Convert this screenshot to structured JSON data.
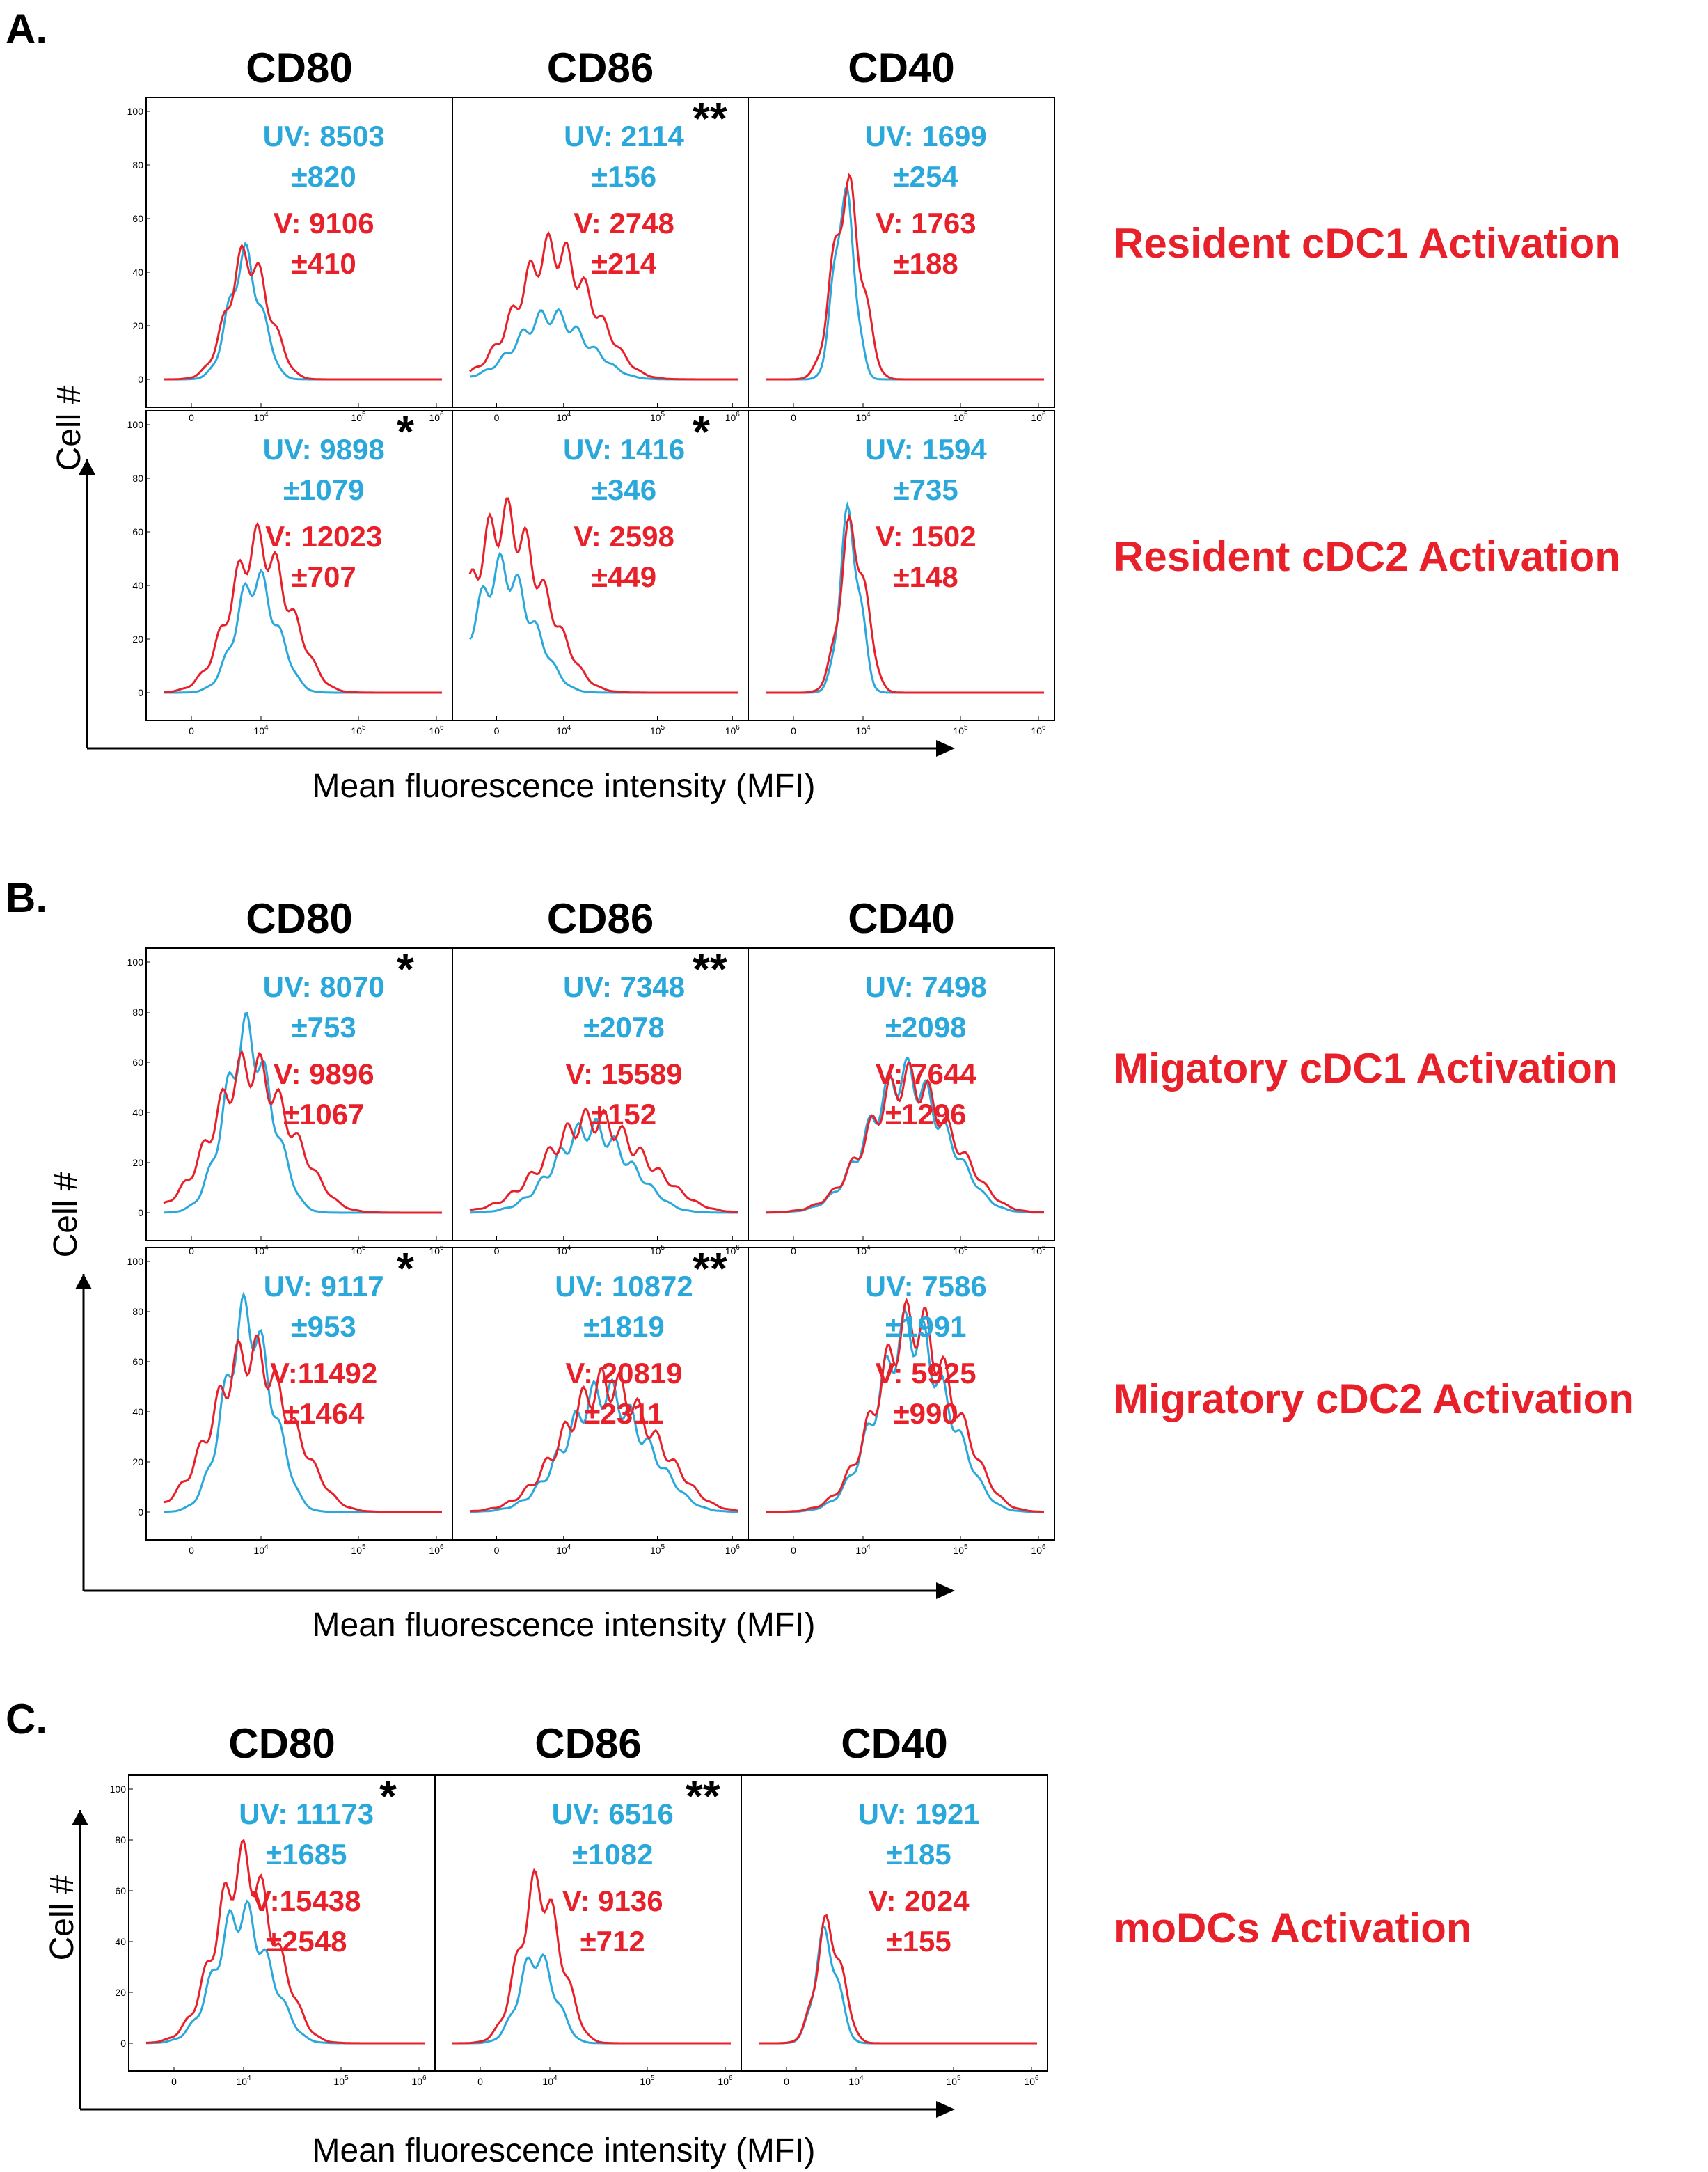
{
  "colors": {
    "uv": "#2aa8dc",
    "v": "#e8202a",
    "label": "#e8202a",
    "text": "#000000"
  },
  "axis": {
    "y_label": "Cell #",
    "x_label": "Mean fluorescence intensity (MFI)",
    "y_ticks": [
      "0",
      "20",
      "40",
      "60",
      "80",
      "100"
    ],
    "x_ticks": [
      {
        "base": "0",
        "exp": ""
      },
      {
        "base": "10",
        "exp": "4"
      },
      {
        "base": "10",
        "exp": "5"
      },
      {
        "base": "10",
        "exp": "6"
      }
    ]
  },
  "chart_data": [
    {
      "type": "line",
      "panel": "A.",
      "markers": [
        "CD80",
        "CD86",
        "CD40"
      ],
      "rows": [
        {
          "label": "Resident cDC1 Activation",
          "cells": [
            {
              "marker": "CD80",
              "uv": "UV: 8503",
              "uv_sd": "±820",
              "v": "V: 9106",
              "v_sd": "±410",
              "sig": "",
              "peak_x": 0.29,
              "uv_peak": 51,
              "v_peak": 52,
              "uv_width": 0.055,
              "v_width": 0.07
            },
            {
              "marker": "CD86",
              "uv": "UV: 2114",
              "uv_sd": "±156",
              "v": "V: 2748",
              "v_sd": "±214",
              "sig": "**",
              "peak_x": 0.3,
              "uv_peak": 27,
              "v_peak": 55,
              "uv_width": 0.12,
              "v_width": 0.13
            },
            {
              "marker": "CD40",
              "uv": "UV: 1699",
              "uv_sd": "±254",
              "v": "V: 1763",
              "v_sd": "±188",
              "sig": "",
              "peak_x": 0.28,
              "uv_peak": 78,
              "v_peak": 79,
              "uv_width": 0.035,
              "v_width": 0.05
            }
          ]
        },
        {
          "label": "Resident cDC2 Activation",
          "cells": [
            {
              "marker": "CD80",
              "uv": "UV: 9898",
              "uv_sd": "±1079",
              "v": "V: 12023",
              "v_sd": "±707",
              "sig": "*",
              "peak_x": 0.33,
              "uv_peak": 48,
              "v_peak": 63,
              "uv_width": 0.07,
              "v_width": 0.1
            },
            {
              "marker": "CD86",
              "uv": "UV: 1416",
              "uv_sd": "±346",
              "v": "V: 2598",
              "v_sd": "±449",
              "sig": "*",
              "peak_x": 0.12,
              "uv_peak": 52,
              "v_peak": 73,
              "uv_width": 0.1,
              "v_width": 0.13
            },
            {
              "marker": "CD40",
              "uv": "UV: 1594",
              "uv_sd": "±735",
              "v": "V: 1502",
              "v_sd": "±148",
              "sig": "",
              "peak_x": 0.3,
              "uv_peak": 72,
              "v_peak": 68,
              "uv_width": 0.035,
              "v_width": 0.045
            }
          ]
        }
      ]
    },
    {
      "type": "line",
      "panel": "B.",
      "markers": [
        "CD80",
        "CD86",
        "CD40"
      ],
      "rows": [
        {
          "label": "Migatory cDC1 Activation",
          "cells": [
            {
              "marker": "CD80",
              "uv": "UV: 8070",
              "uv_sd": "±753",
              "v": "V: 9896",
              "v_sd": "±1067",
              "sig": "*",
              "peak_x": 0.3,
              "uv_peak": 80,
              "v_peak": 66,
              "uv_width": 0.08,
              "v_width": 0.13
            },
            {
              "marker": "CD86",
              "uv": "UV: 7348",
              "uv_sd": "±2078",
              "v": "V: 15589",
              "v_sd": "±152",
              "sig": "**",
              "peak_x": 0.45,
              "uv_peak": 38,
              "v_peak": 42,
              "uv_width": 0.13,
              "v_width": 0.17
            },
            {
              "marker": "CD40",
              "uv": "UV: 7498",
              "uv_sd": "±2098",
              "v": "V: 7644",
              "v_sd": "±1296",
              "sig": "",
              "peak_x": 0.5,
              "uv_peak": 62,
              "v_peak": 60,
              "uv_width": 0.13,
              "v_width": 0.14
            }
          ]
        },
        {
          "label": "Migratory cDC2 Activation",
          "cells": [
            {
              "marker": "CD80",
              "uv": "UV: 9117",
              "uv_sd": "±953",
              "v": "V:11492",
              "v_sd": "±1464",
              "sig": "*",
              "peak_x": 0.3,
              "uv_peak": 88,
              "v_peak": 72,
              "uv_width": 0.08,
              "v_width": 0.13
            },
            {
              "marker": "CD86",
              "uv": "UV: 10872",
              "uv_sd": "±1819",
              "v": "V: 20819",
              "v_sd": "±2311",
              "sig": "**",
              "peak_x": 0.5,
              "uv_peak": 54,
              "v_peak": 58,
              "uv_width": 0.14,
              "v_width": 0.16
            },
            {
              "marker": "CD40",
              "uv": "UV: 7586",
              "uv_sd": "±1991",
              "v": "V: 5925",
              "v_sd": "±990",
              "sig": "",
              "peak_x": 0.52,
              "uv_peak": 82,
              "v_peak": 86,
              "uv_width": 0.12,
              "v_width": 0.13
            }
          ]
        }
      ]
    },
    {
      "type": "line",
      "panel": "C.",
      "markers": [
        "CD80",
        "CD86",
        "CD40"
      ],
      "rows": [
        {
          "label": "moDCs Activation",
          "cells": [
            {
              "marker": "CD80",
              "uv": "UV: 11173",
              "uv_sd": "±1685",
              "v": "V:15438",
              "v_sd": "±2548",
              "sig": "*",
              "peak_x": 0.34,
              "uv_peak": 58,
              "v_peak": 80,
              "uv_width": 0.09,
              "v_width": 0.1
            },
            {
              "marker": "CD86",
              "uv": "UV: 6516",
              "uv_sd": "±1082",
              "v": "V: 9136",
              "v_sd": "±712",
              "sig": "**",
              "peak_x": 0.3,
              "uv_peak": 39,
              "v_peak": 70,
              "uv_width": 0.06,
              "v_width": 0.07
            },
            {
              "marker": "CD40",
              "uv": "UV: 1921",
              "uv_sd": "±185",
              "v": "V: 2024",
              "v_sd": "±155",
              "sig": "",
              "peak_x": 0.24,
              "uv_peak": 47,
              "v_peak": 52,
              "uv_width": 0.04,
              "v_width": 0.045
            }
          ]
        }
      ]
    }
  ]
}
